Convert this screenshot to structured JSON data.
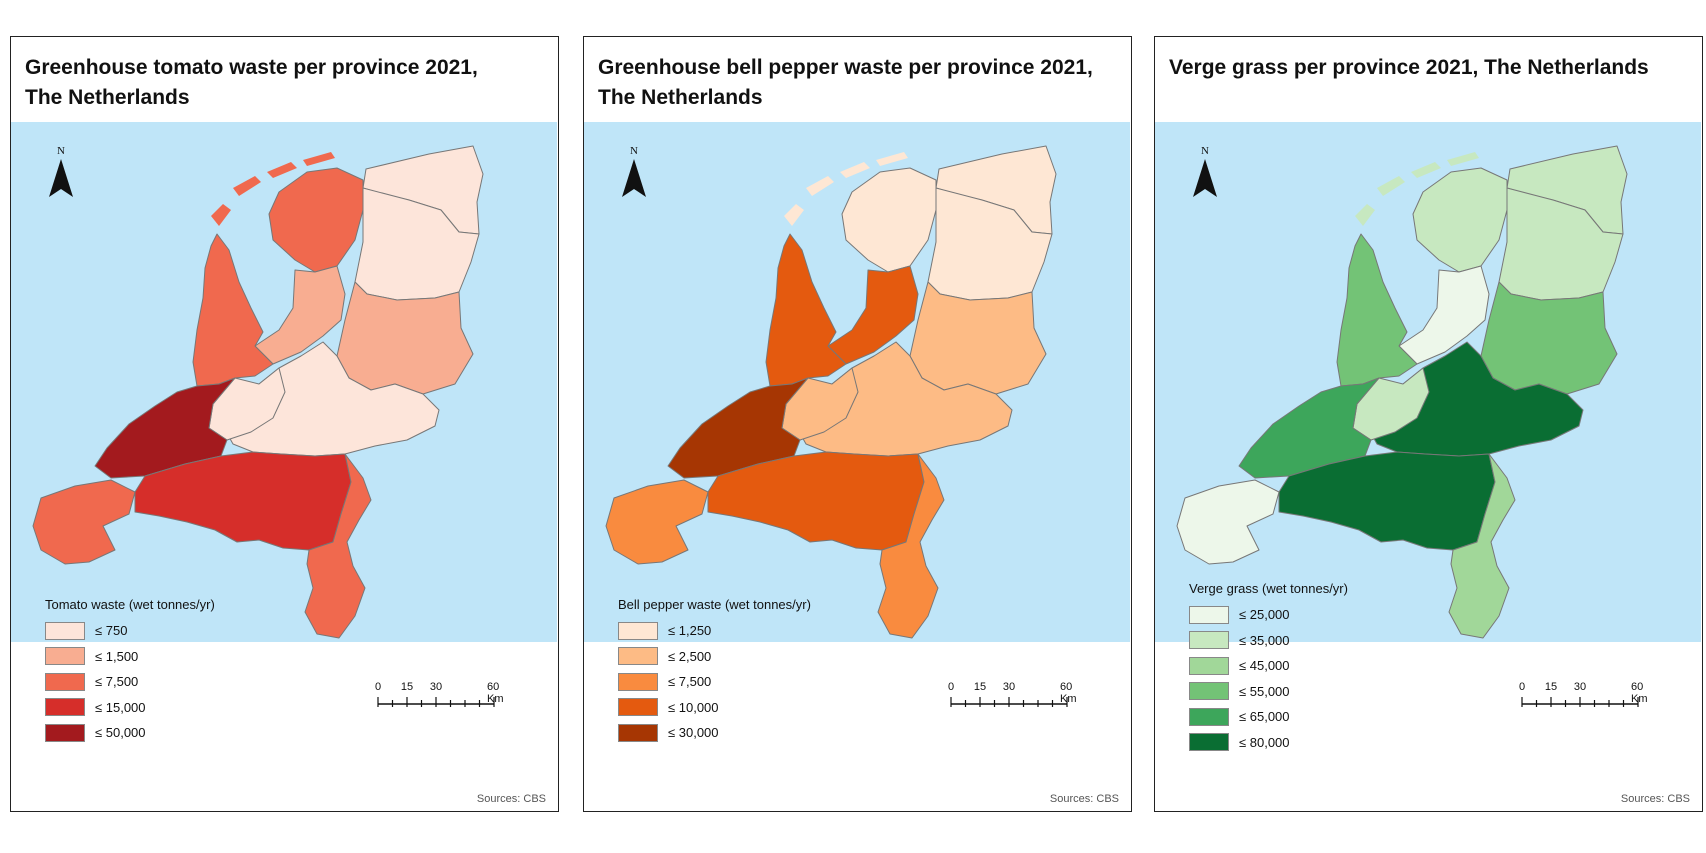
{
  "panels": [
    {
      "title_line1": "Greenhouse tomato waste per province 2021,",
      "title_line2": "The Netherlands",
      "north_label": "N",
      "legend_title": "Tomato waste (wet tonnes/yr)",
      "legend": [
        {
          "label": "≤ 750",
          "color": "#fde5da"
        },
        {
          "label": "≤ 1,500",
          "color": "#f8ad91"
        },
        {
          "label": "≤ 7,500",
          "color": "#f0694e"
        },
        {
          "label": "≤ 15,000",
          "color": "#d62e2a"
        },
        {
          "label": "≤ 50,000",
          "color": "#a31a1e"
        }
      ],
      "provinces": {
        "groningen": 0,
        "friesland": 2,
        "drenthe": 0,
        "overijssel": 1,
        "flevoland": 1,
        "gelderland": 0,
        "utrecht": 0,
        "noord-holland": 2,
        "zuid-holland": 4,
        "zeeland": 2,
        "noord-brabant": 3,
        "limburg": 2
      },
      "scale_labels": [
        "0",
        "15",
        "30",
        "60 Km"
      ],
      "sources": "Sources: CBS"
    },
    {
      "title_line1": "Greenhouse bell pepper waste per province 2021,",
      "title_line2": "The Netherlands",
      "north_label": "N",
      "legend_title": "Bell pepper waste (wet tonnes/yr)",
      "legend": [
        {
          "label": "≤ 1,250",
          "color": "#fee7d4"
        },
        {
          "label": "≤ 2,500",
          "color": "#fdbb85"
        },
        {
          "label": "≤ 7,500",
          "color": "#f98b3f"
        },
        {
          "label": "≤ 10,000",
          "color": "#e45a0f"
        },
        {
          "label": "≤ 30,000",
          "color": "#a63603"
        }
      ],
      "provinces": {
        "groningen": 0,
        "friesland": 0,
        "drenthe": 0,
        "overijssel": 1,
        "flevoland": 3,
        "gelderland": 1,
        "utrecht": 1,
        "noord-holland": 3,
        "zuid-holland": 4,
        "zeeland": 2,
        "noord-brabant": 3,
        "limburg": 2
      },
      "scale_labels": [
        "0",
        "15",
        "30",
        "60 Km"
      ],
      "sources": "Sources: CBS"
    },
    {
      "title_line1": "Verge grass per province 2021, The Netherlands",
      "title_line2": "",
      "north_label": "N",
      "legend_title": "Verge grass (wet tonnes/yr)",
      "legend": [
        {
          "label": "≤ 25,000",
          "color": "#edf7ea"
        },
        {
          "label": "≤ 35,000",
          "color": "#c7e8c0"
        },
        {
          "label": "≤ 45,000",
          "color": "#a1d799"
        },
        {
          "label": "≤  55,000",
          "color": "#73c376"
        },
        {
          "label": "≤ 65,000",
          "color": "#3da65b"
        },
        {
          "label": "≤ 80,000",
          "color": "#0a6e33"
        }
      ],
      "provinces": {
        "groningen": 1,
        "friesland": 1,
        "drenthe": 1,
        "overijssel": 3,
        "flevoland": 0,
        "gelderland": 5,
        "utrecht": 1,
        "noord-holland": 3,
        "zuid-holland": 4,
        "zeeland": 0,
        "noord-brabant": 5,
        "limburg": 2
      },
      "scale_labels": [
        "0",
        "15",
        "30",
        "60 Km"
      ],
      "sources": "Sources: CBS"
    }
  ],
  "colors": {
    "water": "#bfe5f8",
    "border": "#777777"
  }
}
